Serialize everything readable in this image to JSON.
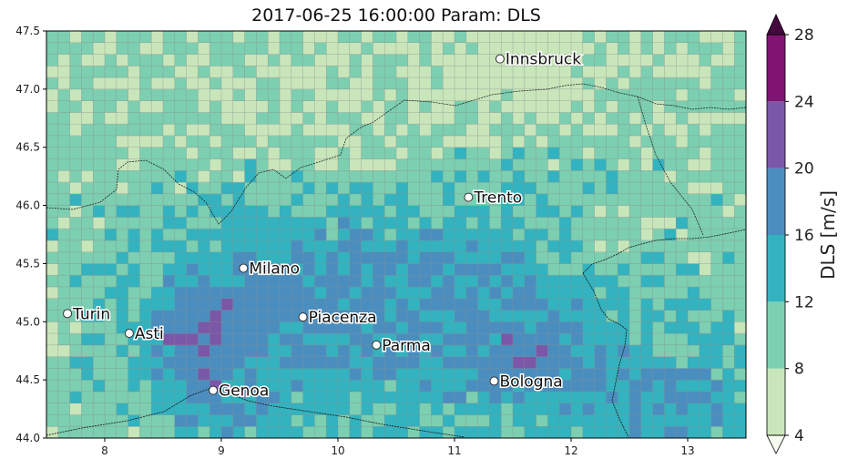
{
  "title": "2017-06-25 16:00:00 Param: DLS",
  "x_ticks": [
    "8",
    "9",
    "10",
    "11",
    "12",
    "13"
  ],
  "y_ticks": [
    "44.0",
    "44.5",
    "45.0",
    "45.5",
    "46.0",
    "46.5",
    "47.0",
    "47.5"
  ],
  "colorbar": {
    "label": "DLS  [m/s]",
    "ticks": [
      "4",
      "8",
      "12",
      "16",
      "20",
      "24",
      "28"
    ],
    "colors": [
      "#c9e6bb",
      "#7ccfb1",
      "#33b3bf",
      "#4a8ec0",
      "#7b57a8",
      "#7f1570"
    ],
    "extend": "both"
  },
  "cities": [
    {
      "name": "Innsbruck",
      "lon": 11.39,
      "lat": 47.26
    },
    {
      "name": "Trento",
      "lon": 11.12,
      "lat": 46.07
    },
    {
      "name": "Milano",
      "lon": 9.19,
      "lat": 45.46
    },
    {
      "name": "Turin",
      "lon": 7.68,
      "lat": 45.07
    },
    {
      "name": "Asti",
      "lon": 8.21,
      "lat": 44.9
    },
    {
      "name": "Piacenza",
      "lon": 9.7,
      "lat": 45.04
    },
    {
      "name": "Parma",
      "lon": 10.33,
      "lat": 44.8
    },
    {
      "name": "Genoa",
      "lon": 8.93,
      "lat": 44.41
    },
    {
      "name": "Bologna",
      "lon": 11.34,
      "lat": 44.49
    }
  ],
  "map": {
    "lon_range": [
      7.5,
      13.5
    ],
    "lat_range": [
      44.0,
      47.5
    ],
    "grid_resolution_deg": 0.1,
    "pattern": "DLS wind speed field: highest (20-28 m/s) over Ligurian Apennines near Genoa/Asti and south-east of Bologna; 12-20 m/s over the Po Valley; 4-12 m/s over the Alps, lowest near Innsbruck"
  }
}
